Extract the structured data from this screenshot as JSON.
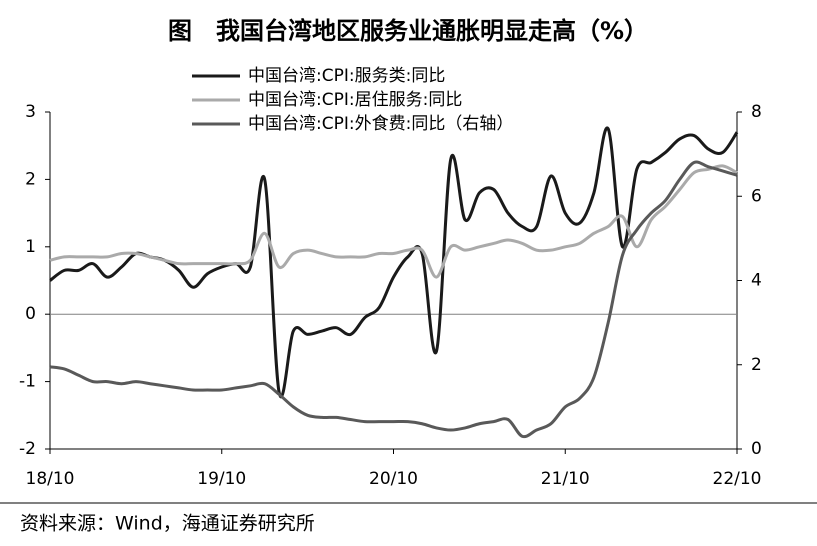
{
  "chart_data": {
    "type": "line",
    "title": "图　我国台湾地区服务业通胀明显走高（%）",
    "source": "资料来源：Wind，海通证券研究所",
    "categories": [
      "18/10",
      null,
      null,
      null,
      null,
      null,
      null,
      null,
      null,
      null,
      null,
      null,
      "19/10",
      null,
      null,
      null,
      null,
      null,
      null,
      null,
      null,
      null,
      null,
      null,
      "20/10",
      null,
      null,
      null,
      null,
      null,
      null,
      null,
      null,
      null,
      null,
      null,
      "21/10",
      null,
      null,
      null,
      null,
      null,
      null,
      null,
      null,
      null,
      null,
      null,
      "22/10"
    ],
    "ylim": [
      -2,
      3
    ],
    "yticks": [
      -2,
      -1,
      0,
      1,
      2,
      3
    ],
    "y2lim": [
      0,
      8
    ],
    "y2ticks": [
      0,
      2,
      4,
      6,
      8
    ],
    "series": [
      {
        "name": "中国台湾:CPI:服务类:同比",
        "color": "#1a1a1a",
        "values": [
          0.5,
          0.65,
          0.65,
          0.75,
          0.55,
          0.7,
          0.9,
          0.85,
          0.8,
          0.65,
          0.4,
          0.6,
          0.7,
          0.75,
          0.7,
          2.0,
          -1.15,
          -0.25,
          -0.3,
          -0.25,
          -0.2,
          -0.3,
          -0.05,
          0.1,
          0.55,
          0.85,
          0.9,
          -0.55,
          2.3,
          1.4,
          1.8,
          1.85,
          1.5,
          1.3,
          1.3,
          2.05,
          1.5,
          1.35,
          1.8,
          2.75,
          1.0,
          2.15,
          2.25,
          2.4,
          2.6,
          2.65,
          2.45,
          2.4,
          2.7
        ]
      },
      {
        "name": "中国台湾:CPI:居住服务:同比",
        "color": "#aaaaaa",
        "values": [
          0.8,
          0.85,
          0.85,
          0.85,
          0.85,
          0.9,
          0.9,
          0.85,
          0.8,
          0.75,
          0.75,
          0.75,
          0.75,
          0.75,
          0.8,
          1.2,
          0.7,
          0.9,
          0.95,
          0.9,
          0.85,
          0.85,
          0.85,
          0.9,
          0.9,
          0.95,
          0.95,
          0.55,
          1.0,
          0.95,
          1.0,
          1.05,
          1.1,
          1.05,
          0.95,
          0.95,
          1.0,
          1.05,
          1.2,
          1.3,
          1.45,
          1.0,
          1.4,
          1.6,
          1.85,
          2.1,
          2.15,
          2.2,
          2.1
        ]
      },
      {
        "name": "中国台湾:CPI:外食费:同比（右轴）",
        "color": "#595959",
        "axis": "y2",
        "values": [
          1.95,
          1.9,
          1.75,
          1.6,
          1.6,
          1.55,
          1.6,
          1.55,
          1.5,
          1.45,
          1.4,
          1.4,
          1.4,
          1.45,
          1.5,
          1.55,
          1.3,
          1.0,
          0.8,
          0.75,
          0.75,
          0.7,
          0.65,
          0.65,
          0.65,
          0.65,
          0.6,
          0.5,
          0.45,
          0.5,
          0.6,
          0.65,
          0.7,
          0.3,
          0.45,
          0.6,
          1.0,
          1.2,
          1.7,
          3.0,
          4.6,
          5.2,
          5.6,
          5.9,
          6.4,
          6.8,
          6.7,
          6.6,
          6.5
        ]
      }
    ]
  }
}
